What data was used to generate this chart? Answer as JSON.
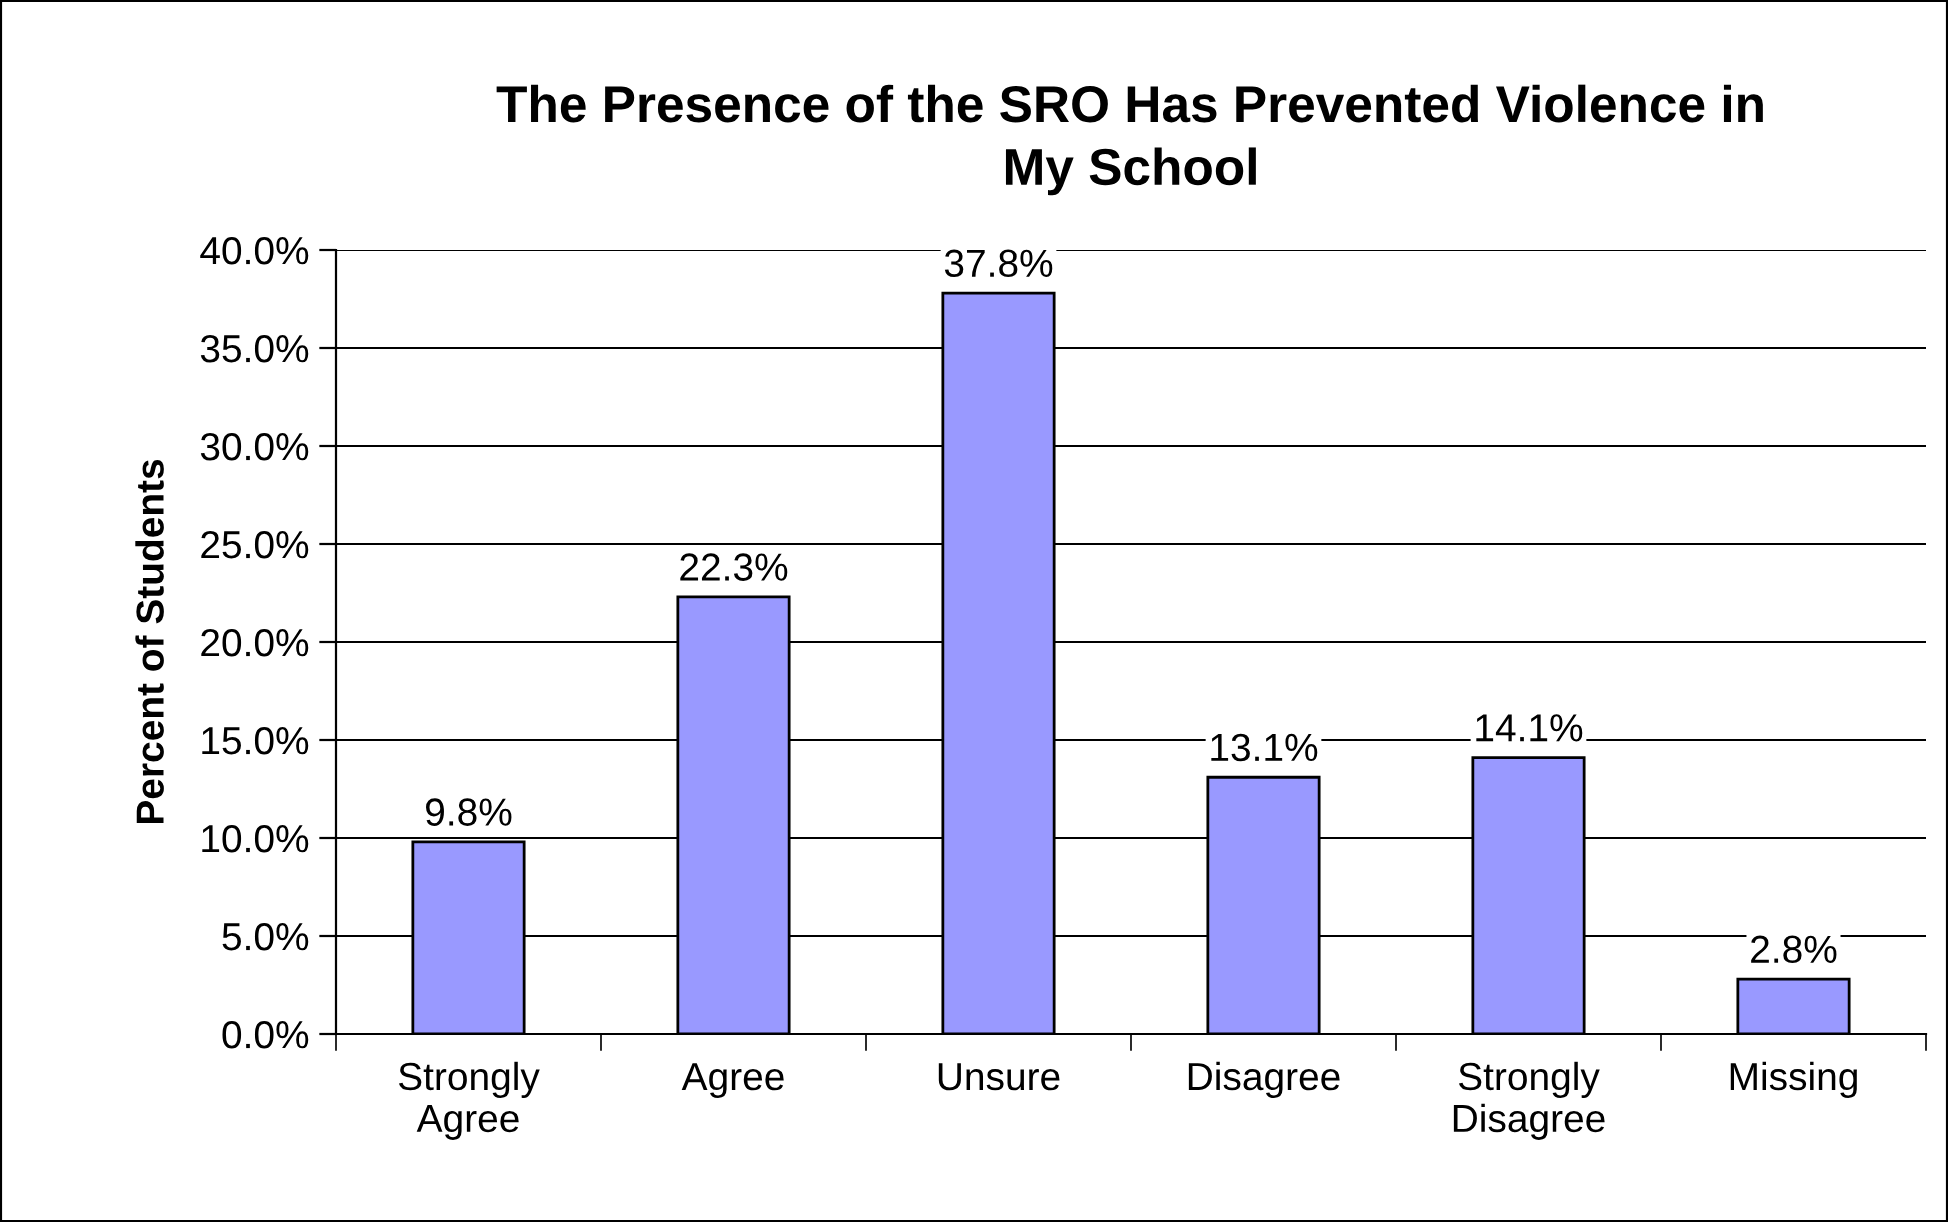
{
  "chart_data": {
    "type": "bar",
    "title": "The Presence of the SRO Has Prevented Violence in\nMy School",
    "ylabel": "Percent of Students",
    "categories": [
      "Strongly\nAgree",
      "Agree",
      "Unsure",
      "Disagree",
      "Strongly\nDisagree",
      "Missing"
    ],
    "values": [
      9.8,
      22.3,
      37.8,
      13.1,
      14.1,
      2.8
    ],
    "color": "#9999ff",
    "value_labels": [
      "9.8%",
      "22.3%",
      "37.8%",
      "13.1%",
      "14.1%",
      "2.8%"
    ],
    "ylim": [
      0,
      40
    ],
    "yticks": [
      {
        "value": 0,
        "label": "0.0%"
      },
      {
        "value": 5,
        "label": "5.0%"
      },
      {
        "value": 10,
        "label": "10.0%"
      },
      {
        "value": 15,
        "label": "15.0%"
      },
      {
        "value": 20,
        "label": "20.0%"
      },
      {
        "value": 25,
        "label": "25.0%"
      },
      {
        "value": 30,
        "label": "30.0%"
      },
      {
        "value": 35,
        "label": "35.0%"
      },
      {
        "value": 40,
        "label": "40.0%"
      }
    ],
    "grid": "y",
    "legend": false
  }
}
